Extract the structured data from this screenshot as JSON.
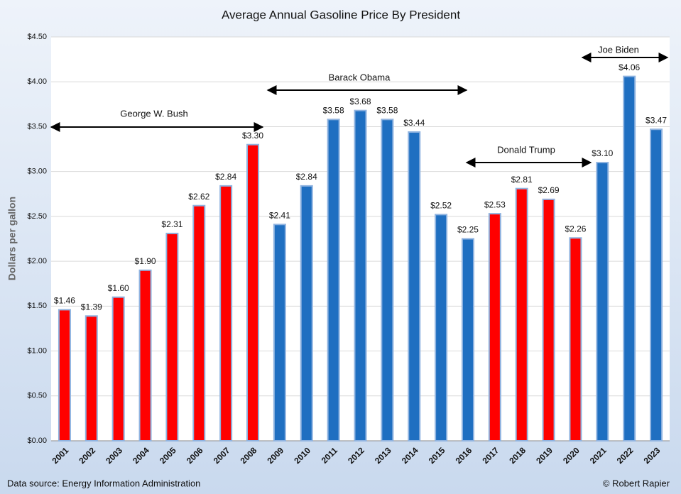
{
  "chart_data": {
    "type": "bar",
    "title": "Average Annual Gasoline Price By President",
    "y_label": "Dollars per gallon",
    "source": "Data source: Energy Information Administration",
    "credit": "© Robert Rapier",
    "categories": [
      "2001",
      "2002",
      "2003",
      "2004",
      "2005",
      "2006",
      "2007",
      "2008",
      "2009",
      "2010",
      "2011",
      "2012",
      "2013",
      "2014",
      "2015",
      "2016",
      "2017",
      "2018",
      "2019",
      "2020",
      "2021",
      "2022",
      "2023"
    ],
    "values": [
      1.46,
      1.39,
      1.6,
      1.9,
      2.31,
      2.62,
      2.84,
      3.3,
      2.41,
      2.84,
      3.58,
      3.68,
      3.58,
      3.44,
      2.52,
      2.25,
      2.53,
      2.81,
      2.69,
      2.26,
      3.1,
      4.06,
      3.47
    ],
    "value_labels": [
      "$1.46",
      "$1.39",
      "$1.60",
      "$1.90",
      "$2.31",
      "$2.62",
      "$2.84",
      "$3.30",
      "$2.41",
      "$2.84",
      "$3.58",
      "$3.68",
      "$3.58",
      "$3.44",
      "$2.52",
      "$2.25",
      "$2.53",
      "$2.81",
      "$2.69",
      "$2.26",
      "$3.10",
      "$4.06",
      "$3.47"
    ],
    "colors": [
      "#ff0000",
      "#ff0000",
      "#ff0000",
      "#ff0000",
      "#ff0000",
      "#ff0000",
      "#ff0000",
      "#ff0000",
      "#1f6fc1",
      "#1f6fc1",
      "#1f6fc1",
      "#1f6fc1",
      "#1f6fc1",
      "#1f6fc1",
      "#1f6fc1",
      "#1f6fc1",
      "#ff0000",
      "#ff0000",
      "#ff0000",
      "#ff0000",
      "#1f6fc1",
      "#1f6fc1",
      "#1f6fc1"
    ],
    "ylim": [
      0,
      4.5
    ],
    "yticks": [
      {
        "value": 0,
        "label": "$0.00"
      },
      {
        "value": 0.5,
        "label": "$0.50"
      },
      {
        "value": 1,
        "label": "$1.00"
      },
      {
        "value": 1.5,
        "label": "$1.50"
      },
      {
        "value": 2,
        "label": "$2.00"
      },
      {
        "value": 2.5,
        "label": "$2.50"
      },
      {
        "value": 3,
        "label": "$3.00"
      },
      {
        "value": 3.5,
        "label": "$3.50"
      },
      {
        "value": 4,
        "label": "$4.00"
      },
      {
        "value": 4.5,
        "label": "$4.50"
      }
    ],
    "grid": true,
    "annotations": [
      "George W. Bush",
      "Barack Obama",
      "Donald Trump",
      "Joe Biden"
    ]
  }
}
